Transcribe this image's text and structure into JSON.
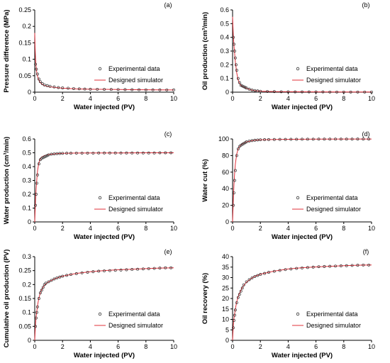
{
  "legend": {
    "experimental": "Experimental data",
    "simulator": "Designed simulator"
  },
  "colors": {
    "simulator": "#e0303a",
    "marker": "#333333",
    "axis": "#000000"
  },
  "chart_data": [
    {
      "id": "a",
      "panel_label": "(a)",
      "type": "scatter",
      "xlabel": "Water injected (PV)",
      "ylabel": "Pressure difference (MPa)",
      "xlim": [
        0,
        10
      ],
      "ylim": [
        0,
        0.25
      ],
      "xticks": [
        0,
        2,
        4,
        6,
        8,
        10
      ],
      "xtick_labels": [
        "0",
        "2",
        "4",
        "6",
        "8",
        "10"
      ],
      "yticks": [
        0,
        0.05,
        0.1,
        0.15,
        0.2,
        0.25
      ],
      "ytick_labels": [
        "0",
        "0.05",
        "0.1",
        "0.15",
        "0.2",
        "0.25"
      ],
      "series": [
        {
          "name": "Experimental data",
          "type": "scatter",
          "x": [
            0.05,
            0.12,
            0.2,
            0.3,
            0.4,
            0.55,
            0.7,
            0.9,
            1.1,
            1.4,
            1.7,
            2.0,
            2.4,
            2.8,
            3.2,
            3.6,
            4.0,
            4.5,
            5.0,
            5.5,
            6.0,
            6.5,
            7.0,
            7.5,
            8.0,
            8.5,
            9.0,
            9.5,
            10.0
          ],
          "y": [
            0.085,
            0.07,
            0.055,
            0.04,
            0.032,
            0.026,
            0.022,
            0.02,
            0.018,
            0.016,
            0.014,
            0.013,
            0.012,
            0.011,
            0.01,
            0.0095,
            0.009,
            0.0088,
            0.0085,
            0.0082,
            0.008,
            0.0078,
            0.0076,
            0.0074,
            0.0072,
            0.0071,
            0.007,
            0.0069,
            0.0068
          ]
        },
        {
          "name": "Designed simulator",
          "type": "line",
          "x": [
            0,
            0.03,
            0.06,
            0.1,
            0.15,
            0.2,
            0.3,
            0.4,
            0.6,
            0.8,
            1.0,
            1.5,
            2.0,
            3.0,
            4.0,
            5.0,
            6.0,
            7.0,
            8.0,
            9.0,
            10.0
          ],
          "y": [
            0.18,
            0.13,
            0.1,
            0.075,
            0.058,
            0.048,
            0.036,
            0.029,
            0.022,
            0.019,
            0.017,
            0.014,
            0.012,
            0.01,
            0.009,
            0.0085,
            0.008,
            0.0076,
            0.0072,
            0.007,
            0.0068
          ]
        }
      ],
      "legend_position": "middle-right"
    },
    {
      "id": "b",
      "panel_label": "(b)",
      "type": "scatter",
      "xlabel": "Water injected (PV)",
      "ylabel": "Oil production (cm³/min)",
      "xlim": [
        0,
        10
      ],
      "ylim": [
        0,
        0.6
      ],
      "xticks": [
        0,
        2,
        4,
        6,
        8,
        10
      ],
      "xtick_labels": [
        "0",
        "2",
        "4",
        "6",
        "8",
        "10"
      ],
      "yticks": [
        0,
        0.1,
        0.2,
        0.3,
        0.4,
        0.5,
        0.6
      ],
      "ytick_labels": [
        "0",
        "0.1",
        "0.2",
        "0.3",
        "0.4",
        "0.5",
        "0.6"
      ],
      "series": [
        {
          "name": "Experimental data",
          "type": "scatter",
          "x": [
            0.05,
            0.1,
            0.15,
            0.2,
            0.25,
            0.3,
            0.4,
            0.5,
            0.6,
            0.7,
            0.8,
            0.9,
            1.0,
            1.2,
            1.4,
            1.6,
            1.8,
            2.0,
            2.5,
            3.0,
            3.5,
            4.0,
            4.5,
            5.0,
            5.5,
            6.0,
            6.5,
            7.0,
            7.5,
            8.0,
            8.5,
            9.0,
            9.5,
            10.0
          ],
          "y": [
            0.4,
            0.35,
            0.3,
            0.25,
            0.2,
            0.16,
            0.1,
            0.07,
            0.05,
            0.045,
            0.04,
            0.035,
            0.03,
            0.022,
            0.016,
            0.012,
            0.009,
            0.007,
            0.005,
            0.004,
            0.003,
            0.003,
            0.002,
            0.002,
            0.002,
            0.002,
            0.002,
            0.001,
            0.001,
            0.001,
            0.001,
            0.001,
            0.001,
            0.001
          ]
        },
        {
          "name": "Designed simulator",
          "type": "line",
          "x": [
            0,
            0.05,
            0.1,
            0.15,
            0.2,
            0.3,
            0.4,
            0.5,
            0.6,
            0.8,
            1.0,
            1.3,
            1.6,
            2.0,
            3.0,
            4.0,
            6.0,
            8.0,
            10.0
          ],
          "y": [
            0.55,
            0.42,
            0.34,
            0.28,
            0.22,
            0.14,
            0.09,
            0.065,
            0.05,
            0.038,
            0.028,
            0.017,
            0.011,
            0.007,
            0.004,
            0.003,
            0.002,
            0.001,
            0.001
          ]
        }
      ],
      "legend_position": "middle-right"
    },
    {
      "id": "c",
      "panel_label": "(c)",
      "type": "scatter",
      "xlabel": "Water injected (PV)",
      "ylabel": "Water production (cm³/min)",
      "xlim": [
        0,
        10
      ],
      "ylim": [
        0,
        0.6
      ],
      "xticks": [
        0,
        2,
        4,
        6,
        8,
        10
      ],
      "xtick_labels": [
        "0",
        "2",
        "4",
        "6",
        "8",
        "10"
      ],
      "yticks": [
        0,
        0.1,
        0.2,
        0.3,
        0.4,
        0.5,
        0.6
      ],
      "ytick_labels": [
        "0",
        "0.1",
        "0.2",
        "0.3",
        "0.4",
        "0.5",
        "0.6"
      ],
      "series": [
        {
          "name": "Experimental data",
          "type": "scatter",
          "x": [
            0.05,
            0.1,
            0.15,
            0.2,
            0.3,
            0.4,
            0.5,
            0.6,
            0.7,
            0.8,
            0.9,
            1.0,
            1.2,
            1.4,
            1.6,
            1.8,
            2.0,
            2.3,
            2.6,
            3.0,
            3.4,
            3.8,
            4.2,
            4.6,
            5.0,
            5.4,
            5.8,
            6.2,
            6.6,
            7.0,
            7.4,
            7.8,
            8.2,
            8.6,
            9.0,
            9.4,
            9.8
          ],
          "y": [
            0.12,
            0.2,
            0.28,
            0.34,
            0.42,
            0.45,
            0.46,
            0.465,
            0.47,
            0.475,
            0.48,
            0.485,
            0.49,
            0.492,
            0.494,
            0.495,
            0.496,
            0.497,
            0.497,
            0.498,
            0.498,
            0.498,
            0.498,
            0.499,
            0.499,
            0.499,
            0.499,
            0.499,
            0.499,
            0.499,
            0.499,
            0.499,
            0.499,
            0.499,
            0.5,
            0.5,
            0.5
          ]
        },
        {
          "name": "Designed simulator",
          "type": "line",
          "x": [
            0,
            0.05,
            0.1,
            0.15,
            0.2,
            0.3,
            0.4,
            0.5,
            0.7,
            1.0,
            1.5,
            2.0,
            3.0,
            4.0,
            6.0,
            8.0,
            10.0
          ],
          "y": [
            0,
            0.14,
            0.24,
            0.31,
            0.37,
            0.43,
            0.455,
            0.47,
            0.48,
            0.487,
            0.493,
            0.496,
            0.498,
            0.499,
            0.499,
            0.5,
            0.5
          ]
        }
      ],
      "legend_position": "middle-right"
    },
    {
      "id": "d",
      "panel_label": "(d)",
      "type": "scatter",
      "xlabel": "Water injected (PV)",
      "ylabel": "Water cut (%)",
      "xlim": [
        0,
        10
      ],
      "ylim": [
        0,
        100
      ],
      "xticks": [
        0,
        2,
        4,
        6,
        8,
        10
      ],
      "xtick_labels": [
        "0",
        "2",
        "4",
        "6",
        "8",
        "10"
      ],
      "yticks": [
        0,
        20,
        40,
        60,
        80,
        100
      ],
      "ytick_labels": [
        "0",
        "20",
        "40",
        "60",
        "80",
        "100"
      ],
      "series": [
        {
          "name": "Experimental data",
          "type": "scatter",
          "x": [
            0.05,
            0.1,
            0.15,
            0.2,
            0.3,
            0.4,
            0.5,
            0.6,
            0.7,
            0.8,
            0.9,
            1.0,
            1.2,
            1.4,
            1.6,
            1.8,
            2.0,
            2.3,
            2.6,
            3.0,
            3.4,
            3.8,
            4.2,
            4.6,
            5.0,
            5.4,
            5.8,
            6.2,
            6.6,
            7.0,
            7.4,
            7.8,
            8.2,
            8.6,
            9.0,
            9.4,
            9.8
          ],
          "y": [
            20,
            35,
            50,
            62,
            80,
            88,
            91,
            92.5,
            93.5,
            94.5,
            95.5,
            96.5,
            97.5,
            98,
            98.5,
            98.8,
            99,
            99.2,
            99.3,
            99.4,
            99.5,
            99.5,
            99.6,
            99.6,
            99.7,
            99.7,
            99.7,
            99.8,
            99.8,
            99.8,
            99.8,
            99.8,
            99.8,
            99.8,
            99.9,
            99.9,
            99.9
          ]
        },
        {
          "name": "Designed simulator",
          "type": "line",
          "x": [
            0,
            0.05,
            0.1,
            0.15,
            0.2,
            0.3,
            0.4,
            0.5,
            0.7,
            1.0,
            1.5,
            2.0,
            3.0,
            4.0,
            6.0,
            8.0,
            10.0
          ],
          "y": [
            0,
            25,
            45,
            60,
            70,
            82,
            88,
            91,
            94,
            96.5,
            98.3,
            99,
            99.4,
            99.6,
            99.8,
            99.9,
            99.9
          ]
        }
      ],
      "legend_position": "middle-right"
    },
    {
      "id": "e",
      "panel_label": "(e)",
      "type": "scatter",
      "xlabel": "Water injected (PV)",
      "ylabel": "Cumulative oil production (PV)",
      "xlim": [
        0,
        10
      ],
      "ylim": [
        0,
        0.3
      ],
      "xticks": [
        0,
        2,
        4,
        6,
        8,
        10
      ],
      "xtick_labels": [
        "0",
        "2",
        "4",
        "6",
        "8",
        "10"
      ],
      "yticks": [
        0,
        0.05,
        0.1,
        0.15,
        0.2,
        0.25,
        0.3
      ],
      "ytick_labels": [
        "0",
        "0.05",
        "0.1",
        "0.15",
        "0.2",
        "0.25",
        "0.3"
      ],
      "series": [
        {
          "name": "Experimental data",
          "type": "scatter",
          "x": [
            0.05,
            0.1,
            0.15,
            0.2,
            0.3,
            0.4,
            0.5,
            0.6,
            0.7,
            0.8,
            1.0,
            1.2,
            1.4,
            1.6,
            1.8,
            2.0,
            2.3,
            2.6,
            3.0,
            3.4,
            3.8,
            4.2,
            4.6,
            5.0,
            5.4,
            5.8,
            6.2,
            6.6,
            7.0,
            7.4,
            7.8,
            8.2,
            8.6,
            9.0,
            9.4,
            9.8
          ],
          "y": [
            0.05,
            0.08,
            0.1,
            0.12,
            0.15,
            0.17,
            0.18,
            0.19,
            0.2,
            0.205,
            0.21,
            0.215,
            0.22,
            0.224,
            0.227,
            0.23,
            0.233,
            0.236,
            0.239,
            0.242,
            0.244,
            0.246,
            0.248,
            0.249,
            0.25,
            0.251,
            0.252,
            0.253,
            0.254,
            0.255,
            0.256,
            0.257,
            0.258,
            0.259,
            0.26,
            0.26
          ]
        },
        {
          "name": "Designed simulator",
          "type": "line",
          "x": [
            0,
            0.05,
            0.1,
            0.2,
            0.3,
            0.4,
            0.5,
            0.7,
            1.0,
            1.5,
            2.0,
            3.0,
            4.0,
            5.0,
            6.0,
            7.0,
            8.0,
            9.0,
            10.0
          ],
          "y": [
            0,
            0.055,
            0.085,
            0.125,
            0.152,
            0.17,
            0.182,
            0.198,
            0.21,
            0.222,
            0.23,
            0.24,
            0.246,
            0.25,
            0.253,
            0.255,
            0.257,
            0.259,
            0.26
          ]
        }
      ],
      "legend_position": "bottom-right"
    },
    {
      "id": "f",
      "panel_label": "(f)",
      "type": "scatter",
      "xlabel": "Water injected (PV)",
      "ylabel": "Oil recovery (%)",
      "xlim": [
        0,
        10
      ],
      "ylim": [
        0,
        40
      ],
      "xticks": [
        0,
        2,
        4,
        6,
        8,
        10
      ],
      "xtick_labels": [
        "0",
        "2",
        "4",
        "6",
        "8",
        "10"
      ],
      "yticks": [
        0,
        5,
        10,
        15,
        20,
        25,
        30,
        35,
        40
      ],
      "ytick_labels": [
        "0",
        "5",
        "10",
        "15",
        "20",
        "25",
        "30",
        "35",
        "40"
      ],
      "series": [
        {
          "name": "Experimental data",
          "type": "scatter",
          "x": [
            0.05,
            0.1,
            0.15,
            0.2,
            0.3,
            0.4,
            0.5,
            0.6,
            0.7,
            0.8,
            1.0,
            1.2,
            1.4,
            1.6,
            1.8,
            2.0,
            2.3,
            2.6,
            3.0,
            3.4,
            3.8,
            4.2,
            4.6,
            5.0,
            5.4,
            5.8,
            6.2,
            6.6,
            7.0,
            7.4,
            7.8,
            8.2,
            8.6,
            9.0,
            9.4,
            9.8
          ],
          "y": [
            6,
            9.5,
            12,
            14.5,
            18,
            20.5,
            22,
            23.5,
            25,
            26.5,
            28,
            29,
            29.8,
            30.5,
            31,
            31.5,
            32,
            32.5,
            33,
            33.4,
            33.8,
            34.1,
            34.4,
            34.6,
            34.8,
            35,
            35.2,
            35.3,
            35.4,
            35.5,
            35.6,
            35.7,
            35.8,
            35.9,
            36,
            36
          ]
        },
        {
          "name": "Designed simulator",
          "type": "line",
          "x": [
            0,
            0.05,
            0.1,
            0.2,
            0.3,
            0.4,
            0.5,
            0.7,
            1.0,
            1.5,
            2.0,
            3.0,
            4.0,
            5.0,
            6.0,
            7.0,
            8.0,
            9.0,
            10.0
          ],
          "y": [
            0,
            7,
            10.5,
            15,
            18.5,
            20.8,
            22.5,
            25.3,
            27.8,
            30.3,
            31.6,
            33.1,
            34.1,
            34.7,
            35.1,
            35.4,
            35.7,
            35.9,
            36
          ]
        }
      ],
      "legend_position": "bottom-right"
    }
  ]
}
